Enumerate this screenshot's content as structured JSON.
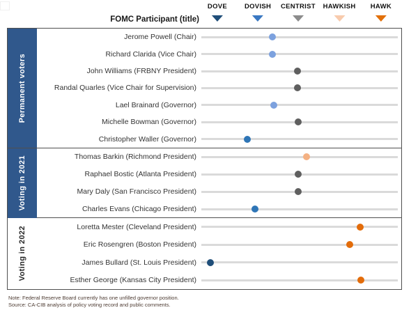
{
  "header": {
    "participant_col_label": "FOMC Participant (title)"
  },
  "legend": {
    "items": [
      {
        "label": "DOVE",
        "color": "#1F4E79",
        "position_pct": 7.8
      },
      {
        "label": "DOVISH",
        "color": "#3A78C2",
        "position_pct": 28.4
      },
      {
        "label": "CENTRIST",
        "color": "#8C8C8C",
        "position_pct": 48.9
      },
      {
        "label": "HAWKISH",
        "color": "#F8CBAD",
        "position_pct": 69.9
      },
      {
        "label": "HAWK",
        "color": "#E2700A",
        "position_pct": 91.1
      }
    ]
  },
  "sections": [
    {
      "label": "Permanent voters",
      "rows": [
        {
          "label": "Jerome Powell (Chair)",
          "position_pct": 36.2,
          "color": "#7CA1DE"
        },
        {
          "label": "Richard Clarida (Vice Chair)",
          "position_pct": 36.2,
          "color": "#7CA1DE"
        },
        {
          "label": "John Williams (FRBNY President)",
          "position_pct": 48.9,
          "color": "#5F5F5F"
        },
        {
          "label": "Randal Quarles (Vice Chair for Supervision)",
          "position_pct": 48.9,
          "color": "#5F5F5F"
        },
        {
          "label": "Lael Brainard (Governor)",
          "position_pct": 36.9,
          "color": "#7CA1DE"
        },
        {
          "label": "Michelle Bowman (Governor)",
          "position_pct": 49.3,
          "color": "#5F5F5F"
        },
        {
          "label": "Christopher Waller (Governor)",
          "position_pct": 23.4,
          "color": "#2E75B6"
        }
      ]
    },
    {
      "label": "Voting in 2021",
      "rows": [
        {
          "label": "Thomas Barkin (Richmond President)",
          "position_pct": 53.5,
          "color": "#F4B183"
        },
        {
          "label": "Raphael Bostic (Atlanta President)",
          "position_pct": 49.3,
          "color": "#5F5F5F"
        },
        {
          "label": "Mary Daly (San Francisco President)",
          "position_pct": 49.3,
          "color": "#5F5F5F"
        },
        {
          "label": "Charles Evans (Chicago President)",
          "position_pct": 27.3,
          "color": "#2E75B6"
        }
      ]
    },
    {
      "label": "Voting in 2022",
      "rows": [
        {
          "label": "Loretta Mester (Cleveland President)",
          "position_pct": 80.9,
          "color": "#E36C0A"
        },
        {
          "label": "Eric Rosengren (Boston President)",
          "position_pct": 75.5,
          "color": "#E36C0A"
        },
        {
          "label": "James Bullard (St. Louis President)",
          "position_pct": 4.6,
          "color": "#1F4E79"
        },
        {
          "label": "Esther George (Kansas City President)",
          "position_pct": 81.2,
          "color": "#E36C0A"
        }
      ]
    }
  ],
  "notes": {
    "note": "Note: Federal Reserve Board currently has one unfilled  governor position.",
    "source": "Source: CA-CIB analysis of policy voting record and public comments."
  },
  "chart_data": {
    "type": "scatter",
    "title": "",
    "xlabel": "FOMC Participant (title)",
    "x_axis": {
      "tick_labels": [
        "DOVE",
        "DOVISH",
        "CENTRIST",
        "HAWKISH",
        "HAWK"
      ],
      "tick_values": [
        0,
        1,
        2,
        3,
        4
      ],
      "range": [
        -0.4,
        4.4
      ]
    },
    "legend_position": "top",
    "grid": false,
    "series": [
      {
        "name": "Permanent voters",
        "points": [
          {
            "participant": "Jerome Powell (Chair)",
            "hawkishness": 1.4
          },
          {
            "participant": "Richard Clarida (Vice Chair)",
            "hawkishness": 1.4
          },
          {
            "participant": "John Williams (FRBNY President)",
            "hawkishness": 2.0
          },
          {
            "participant": "Randal Quarles (Vice Chair for Supervision)",
            "hawkishness": 2.0
          },
          {
            "participant": "Lael Brainard (Governor)",
            "hawkishness": 1.4
          },
          {
            "participant": "Michelle Bowman (Governor)",
            "hawkishness": 2.0
          },
          {
            "participant": "Christopher Waller (Governor)",
            "hawkishness": 0.8
          }
        ]
      },
      {
        "name": "Voting in 2021",
        "points": [
          {
            "participant": "Thomas Barkin (Richmond President)",
            "hawkishness": 2.2
          },
          {
            "participant": "Raphael Bostic (Atlanta President)",
            "hawkishness": 2.0
          },
          {
            "participant": "Mary Daly (San Francisco President)",
            "hawkishness": 2.0
          },
          {
            "participant": "Charles Evans (Chicago President)",
            "hawkishness": 1.0
          }
        ]
      },
      {
        "name": "Voting in 2022",
        "points": [
          {
            "participant": "Loretta Mester (Cleveland President)",
            "hawkishness": 3.5
          },
          {
            "participant": "Eric Rosengren (Boston President)",
            "hawkishness": 3.3
          },
          {
            "participant": "James Bullard (St. Louis President)",
            "hawkishness": 0.0
          },
          {
            "participant": "Esther George (Kansas City President)",
            "hawkishness": 3.5
          }
        ]
      }
    ]
  }
}
